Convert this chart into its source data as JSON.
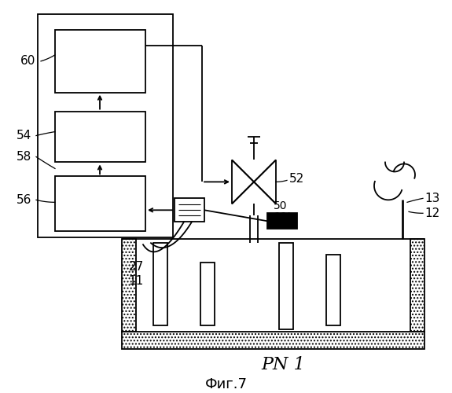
{
  "title": "Фиг.7",
  "pn_label": "PN 1",
  "bg": "#ffffff",
  "lc": "#000000",
  "dot_color": "#bbbbbb"
}
